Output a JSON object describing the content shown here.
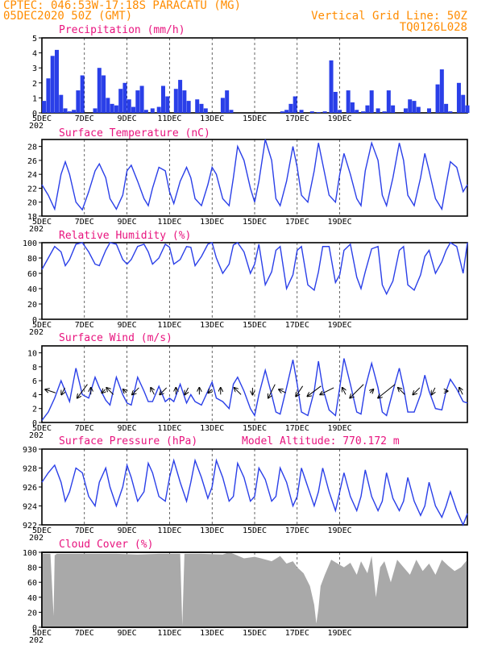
{
  "header": {
    "station_line": "CPTEC:   046:53W-17:18S  PARACATU (MG)",
    "date_line": "05DEC2020 50Z (GMT)",
    "grid_note": "Vertical Grid Line: 50Z",
    "run_code": "TQ0126L028"
  },
  "x_axis": {
    "labels": [
      "5DEC",
      "7DEC",
      "9DEC",
      "11DEC",
      "13DEC",
      "15DEC",
      "17DEC",
      "19DEC"
    ],
    "year_stub": "202"
  },
  "colors": {
    "line": "#2a3fe8",
    "bar": "#2a3fe8",
    "title": "#e8137e",
    "header": "#ff8c00",
    "cloud": "#a9a9a9"
  },
  "chart_data": [
    {
      "id": "precip",
      "type": "bar",
      "title": "Precipitation (mm/h)",
      "ylim": [
        0,
        5
      ],
      "yticks": [
        0,
        1,
        2,
        3,
        4,
        5
      ],
      "x_unit": "days since 5DEC 00Z",
      "x": [
        0.1,
        0.3,
        0.5,
        0.7,
        0.9,
        1.1,
        1.3,
        1.5,
        1.7,
        1.9,
        2.5,
        2.7,
        2.9,
        3.1,
        3.3,
        3.5,
        3.7,
        3.9,
        4.1,
        4.3,
        4.5,
        4.7,
        4.9,
        5.2,
        5.5,
        5.7,
        5.9,
        6.3,
        6.5,
        6.7,
        6.9,
        7.3,
        7.5,
        7.7,
        8.5,
        8.7,
        8.9,
        11.3,
        11.5,
        11.7,
        11.9,
        12.2,
        12.7,
        13.0,
        13.3,
        13.6,
        13.8,
        14.0,
        14.4,
        14.6,
        14.8,
        15.1,
        15.3,
        15.5,
        15.8,
        16.1,
        16.3,
        16.5,
        17.1,
        17.3,
        17.5,
        17.7,
        18.2,
        18.6,
        18.8,
        19.0,
        19.2,
        19.6,
        19.8,
        20.0
      ],
      "values": [
        0.8,
        2.3,
        3.8,
        4.2,
        1.2,
        0.3,
        0.1,
        0.2,
        1.5,
        2.5,
        0.3,
        3.0,
        2.5,
        1.0,
        0.6,
        0.5,
        1.6,
        2.0,
        0.9,
        0.4,
        1.5,
        1.8,
        0.2,
        0.3,
        0.4,
        1.8,
        1.1,
        1.6,
        2.2,
        1.5,
        0.8,
        0.9,
        0.6,
        0.3,
        1.0,
        1.5,
        0.2,
        0.1,
        0.2,
        0.6,
        1.1,
        0.2,
        0.1,
        0.05,
        0.1,
        3.5,
        1.4,
        0.2,
        1.5,
        0.7,
        0.2,
        0.1,
        0.5,
        1.5,
        0.3,
        0.1,
        1.5,
        0.5,
        0.3,
        0.9,
        0.8,
        0.4,
        0.3,
        1.9,
        2.9,
        0.6,
        0.1,
        2.0,
        1.2,
        0.5
      ]
    },
    {
      "id": "temp",
      "type": "line",
      "title": "Surface Temperature (nC)",
      "ylim": [
        18,
        29
      ],
      "yticks": [
        18,
        20,
        22,
        24,
        26,
        28
      ],
      "x_unit": "days since 5DEC 00Z",
      "x": [
        0.0,
        0.3,
        0.6,
        0.9,
        1.1,
        1.3,
        1.6,
        1.9,
        2.2,
        2.5,
        2.7,
        3.0,
        3.2,
        3.5,
        3.8,
        4.0,
        4.2,
        4.5,
        4.8,
        5.0,
        5.2,
        5.5,
        5.8,
        6.0,
        6.2,
        6.5,
        6.8,
        7.0,
        7.2,
        7.5,
        7.8,
        8.0,
        8.2,
        8.5,
        8.8,
        9.0,
        9.2,
        9.5,
        9.8,
        10.0,
        10.2,
        10.5,
        10.8,
        11.0,
        11.2,
        11.5,
        11.8,
        12.0,
        12.2,
        12.5,
        12.8,
        13.0,
        13.2,
        13.5,
        13.8,
        14.0,
        14.2,
        14.5,
        14.8,
        15.0,
        15.2,
        15.5,
        15.8,
        16.0,
        16.2,
        16.5,
        16.8,
        17.0,
        17.2,
        17.5,
        17.8,
        18.0,
        18.2,
        18.5,
        18.8,
        19.0,
        19.2,
        19.5,
        19.8,
        20.0
      ],
      "values": [
        22.5,
        21.0,
        19.0,
        24.0,
        25.8,
        24.0,
        20.0,
        18.9,
        21.5,
        24.5,
        25.5,
        23.5,
        20.5,
        19.0,
        21.0,
        24.5,
        25.3,
        23.0,
        20.5,
        19.5,
        22.0,
        25.0,
        24.5,
        21.5,
        19.8,
        23.0,
        25.0,
        23.5,
        20.5,
        19.5,
        22.5,
        25.0,
        24.0,
        20.5,
        19.5,
        23.5,
        28.0,
        26.0,
        22.0,
        20.0,
        23.0,
        29.0,
        26.0,
        20.5,
        19.5,
        23.0,
        28.0,
        25.0,
        21.0,
        20.0,
        24.5,
        28.5,
        25.5,
        21.0,
        20.0,
        24.0,
        27.0,
        24.0,
        20.5,
        19.5,
        24.5,
        28.5,
        26.0,
        21.0,
        19.5,
        23.5,
        28.5,
        26.0,
        21.0,
        19.5,
        23.5,
        27.0,
        24.5,
        20.5,
        19.0,
        22.5,
        25.8,
        25.0,
        21.5,
        22.5
      ]
    },
    {
      "id": "rh",
      "type": "line",
      "title": "Relative Humidity (%)",
      "ylim": [
        0,
        100
      ],
      "yticks": [
        0,
        20,
        40,
        60,
        80,
        100
      ],
      "x_unit": "days since 5DEC 00Z",
      "x": [
        0.0,
        0.3,
        0.6,
        0.9,
        1.1,
        1.3,
        1.6,
        1.9,
        2.2,
        2.5,
        2.7,
        3.0,
        3.2,
        3.5,
        3.8,
        4.0,
        4.2,
        4.5,
        4.8,
        5.0,
        5.2,
        5.5,
        5.8,
        6.0,
        6.2,
        6.5,
        6.8,
        7.0,
        7.2,
        7.5,
        7.8,
        8.0,
        8.2,
        8.5,
        8.8,
        9.0,
        9.2,
        9.5,
        9.8,
        10.0,
        10.2,
        10.5,
        10.8,
        11.0,
        11.2,
        11.5,
        11.8,
        12.0,
        12.2,
        12.5,
        12.8,
        13.0,
        13.2,
        13.5,
        13.8,
        14.0,
        14.2,
        14.5,
        14.8,
        15.0,
        15.2,
        15.5,
        15.8,
        16.0,
        16.2,
        16.5,
        16.8,
        17.0,
        17.2,
        17.5,
        17.8,
        18.0,
        18.2,
        18.5,
        18.8,
        19.0,
        19.2,
        19.5,
        19.8,
        20.0
      ],
      "values": [
        65,
        80,
        95,
        88,
        70,
        78,
        98,
        100,
        88,
        72,
        70,
        90,
        100,
        98,
        78,
        72,
        78,
        95,
        98,
        88,
        72,
        80,
        98,
        94,
        72,
        78,
        95,
        94,
        70,
        82,
        98,
        100,
        80,
        60,
        72,
        97,
        100,
        88,
        60,
        72,
        98,
        45,
        62,
        90,
        95,
        40,
        58,
        90,
        95,
        45,
        38,
        62,
        95,
        95,
        48,
        58,
        90,
        98,
        55,
        40,
        62,
        92,
        95,
        45,
        33,
        50,
        90,
        95,
        45,
        38,
        58,
        82,
        90,
        60,
        75,
        90,
        100,
        95,
        60,
        100
      ]
    },
    {
      "id": "wind",
      "type": "line",
      "title": "Surface Wind (m/s)",
      "ylim": [
        0,
        11
      ],
      "yticks": [
        0,
        2,
        4,
        6,
        8,
        10
      ],
      "x_unit": "days since 5DEC 00Z",
      "x": [
        0.0,
        0.3,
        0.6,
        0.9,
        1.1,
        1.3,
        1.6,
        1.9,
        2.2,
        2.5,
        2.7,
        3.0,
        3.2,
        3.5,
        3.8,
        4.0,
        4.2,
        4.5,
        4.8,
        5.0,
        5.2,
        5.5,
        5.8,
        6.0,
        6.2,
        6.5,
        6.8,
        7.0,
        7.2,
        7.5,
        7.8,
        8.0,
        8.2,
        8.5,
        8.8,
        9.0,
        9.2,
        9.5,
        9.8,
        10.0,
        10.2,
        10.5,
        10.8,
        11.0,
        11.2,
        11.5,
        11.8,
        12.0,
        12.2,
        12.5,
        12.8,
        13.0,
        13.2,
        13.5,
        13.8,
        14.0,
        14.2,
        14.5,
        14.8,
        15.0,
        15.2,
        15.5,
        15.8,
        16.0,
        16.2,
        16.5,
        16.8,
        17.0,
        17.2,
        17.5,
        17.8,
        18.0,
        18.2,
        18.5,
        18.8,
        19.0,
        19.2,
        19.5,
        19.8,
        20.0
      ],
      "values": [
        0.3,
        1.5,
        3.5,
        6.0,
        4.5,
        3.0,
        7.8,
        4.0,
        3.5,
        6.5,
        5.0,
        3.2,
        2.5,
        6.5,
        4.0,
        2.8,
        2.5,
        6.5,
        4.5,
        3.0,
        3.0,
        5.2,
        3.0,
        3.5,
        3.0,
        5.5,
        2.8,
        4.0,
        3.0,
        2.5,
        4.5,
        5.8,
        3.5,
        3.0,
        2.0,
        5.5,
        6.5,
        4.5,
        2.0,
        1.0,
        4.0,
        7.5,
        4.0,
        1.5,
        1.2,
        5.0,
        9.0,
        5.5,
        1.5,
        1.0,
        4.5,
        8.8,
        5.0,
        1.8,
        1.0,
        5.0,
        9.2,
        5.5,
        1.5,
        1.2,
        5.0,
        8.5,
        5.0,
        1.5,
        1.0,
        4.5,
        7.8,
        5.0,
        1.5,
        1.5,
        4.0,
        6.8,
        4.5,
        2.0,
        1.8,
        4.5,
        6.2,
        4.8,
        3.0,
        2.8
      ],
      "arrows": [
        {
          "x": 0.4,
          "u": -3,
          "v": 1
        },
        {
          "x": 1.0,
          "u": -1,
          "v": -2
        },
        {
          "x": 1.9,
          "u": -3,
          "v": -4
        },
        {
          "x": 2.3,
          "u": 0,
          "v": 2
        },
        {
          "x": 2.9,
          "u": -1,
          "v": -1
        },
        {
          "x": 3.2,
          "u": -2,
          "v": 2
        },
        {
          "x": 3.9,
          "u": -1,
          "v": 1
        },
        {
          "x": 4.4,
          "u": -2,
          "v": -2
        },
        {
          "x": 5.2,
          "u": -1,
          "v": 2
        },
        {
          "x": 5.7,
          "u": -2,
          "v": -2
        },
        {
          "x": 6.3,
          "u": 0,
          "v": 2
        },
        {
          "x": 6.8,
          "u": -1,
          "v": -2
        },
        {
          "x": 7.4,
          "u": 0,
          "v": 2
        },
        {
          "x": 7.9,
          "u": -1,
          "v": -1
        },
        {
          "x": 8.4,
          "u": 0,
          "v": 2
        },
        {
          "x": 9.2,
          "u": -2,
          "v": 2
        },
        {
          "x": 9.9,
          "u": 0,
          "v": -2
        },
        {
          "x": 10.8,
          "u": -2,
          "v": -4
        },
        {
          "x": 11.3,
          "u": -2,
          "v": 1
        },
        {
          "x": 12.1,
          "u": -2,
          "v": -3
        },
        {
          "x": 12.8,
          "u": -4,
          "v": -3
        },
        {
          "x": 13.4,
          "u": -4,
          "v": -2
        },
        {
          "x": 14.2,
          "u": -1,
          "v": 2
        },
        {
          "x": 14.8,
          "u": -4,
          "v": -4
        },
        {
          "x": 15.5,
          "u": 1,
          "v": 1
        },
        {
          "x": 16.2,
          "u": -5,
          "v": -4
        },
        {
          "x": 16.9,
          "u": -2,
          "v": 2
        },
        {
          "x": 17.6,
          "u": -2,
          "v": -2
        },
        {
          "x": 18.4,
          "u": -1,
          "v": -2
        },
        {
          "x": 19.0,
          "u": 1,
          "v": 0
        },
        {
          "x": 19.7,
          "u": -1,
          "v": 2
        }
      ]
    },
    {
      "id": "pres",
      "type": "line",
      "title": "Surface Pressure (hPa)",
      "extra_label": "Model Altitude: 770.172 m",
      "ylim": [
        922,
        930
      ],
      "yticks": [
        922,
        924,
        926,
        928,
        930
      ],
      "x_unit": "days since 5DEC 00Z",
      "x": [
        0.0,
        0.3,
        0.6,
        0.9,
        1.1,
        1.3,
        1.6,
        1.9,
        2.2,
        2.5,
        2.7,
        3.0,
        3.2,
        3.5,
        3.8,
        4.0,
        4.2,
        4.5,
        4.8,
        5.0,
        5.2,
        5.5,
        5.8,
        6.0,
        6.2,
        6.5,
        6.8,
        7.0,
        7.2,
        7.5,
        7.8,
        8.0,
        8.2,
        8.5,
        8.8,
        9.0,
        9.2,
        9.5,
        9.8,
        10.0,
        10.2,
        10.5,
        10.8,
        11.0,
        11.2,
        11.5,
        11.8,
        12.0,
        12.2,
        12.5,
        12.8,
        13.0,
        13.2,
        13.5,
        13.8,
        14.0,
        14.2,
        14.5,
        14.8,
        15.0,
        15.2,
        15.5,
        15.8,
        16.0,
        16.2,
        16.5,
        16.8,
        17.0,
        17.2,
        17.5,
        17.8,
        18.0,
        18.2,
        18.5,
        18.8,
        19.0,
        19.2,
        19.5,
        19.8,
        20.0
      ],
      "values": [
        926.5,
        927.5,
        928.3,
        926.5,
        924.5,
        925.5,
        928.0,
        927.5,
        925.0,
        924.0,
        926.5,
        928.0,
        926.0,
        924.0,
        926.0,
        928.3,
        927.0,
        924.5,
        925.5,
        928.5,
        927.5,
        925.0,
        924.5,
        927.0,
        928.8,
        926.5,
        924.5,
        926.5,
        928.8,
        927.0,
        924.8,
        926.0,
        928.8,
        927.0,
        924.5,
        925.0,
        928.5,
        927.0,
        924.5,
        925.0,
        928.0,
        926.8,
        924.5,
        925.0,
        928.0,
        926.5,
        924.0,
        925.0,
        928.0,
        926.0,
        924.0,
        925.5,
        928.0,
        925.5,
        923.5,
        925.5,
        927.5,
        925.0,
        923.5,
        925.0,
        927.8,
        925.0,
        923.5,
        924.5,
        927.5,
        924.8,
        923.5,
        924.5,
        927.0,
        924.5,
        923.0,
        924.0,
        926.5,
        924.0,
        922.8,
        924.0,
        925.5,
        923.5,
        922.0,
        923.2
      ]
    },
    {
      "id": "cloud",
      "type": "area",
      "title": "Cloud Cover (%)",
      "ylim": [
        0,
        100
      ],
      "yticks": [
        0,
        20,
        40,
        60,
        80,
        100
      ],
      "x_unit": "days since 5DEC 00Z",
      "x": [
        0.0,
        0.4,
        0.55,
        0.6,
        0.7,
        1.5,
        2.5,
        3.5,
        4.5,
        5.5,
        6.5,
        6.6,
        6.7,
        7.5,
        8.5,
        8.8,
        9.0,
        9.5,
        10.0,
        10.3,
        10.8,
        11.2,
        11.5,
        11.8,
        12.0,
        12.3,
        12.6,
        12.8,
        12.9,
        13.0,
        13.1,
        13.3,
        13.6,
        13.9,
        14.2,
        14.5,
        14.8,
        15.0,
        15.3,
        15.5,
        15.7,
        15.9,
        16.1,
        16.4,
        16.7,
        17.0,
        17.3,
        17.6,
        17.9,
        18.2,
        18.5,
        18.8,
        19.1,
        19.4,
        19.7,
        20.0
      ],
      "values": [
        98,
        98,
        15,
        96,
        98,
        98,
        98,
        98,
        97,
        98,
        98,
        2,
        98,
        98,
        97,
        100,
        98,
        92,
        94,
        92,
        88,
        95,
        85,
        88,
        80,
        72,
        55,
        30,
        5,
        25,
        55,
        70,
        90,
        85,
        80,
        86,
        70,
        88,
        72,
        95,
        40,
        80,
        88,
        60,
        90,
        80,
        70,
        90,
        75,
        85,
        70,
        90,
        82,
        75,
        80,
        90
      ]
    }
  ]
}
